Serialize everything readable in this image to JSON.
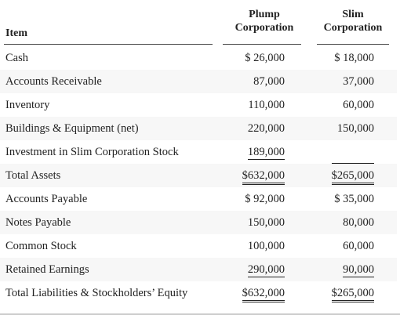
{
  "header": {
    "item": "Item",
    "plump": [
      "Plump",
      "Corporation"
    ],
    "slim": [
      "Slim",
      "Corporation"
    ]
  },
  "table": {
    "rows": [
      {
        "item": "Cash",
        "plump": "$ 26,000",
        "slim": "$ 18,000"
      },
      {
        "item": "Accounts Receivable",
        "plump": "87,000",
        "slim": "37,000"
      },
      {
        "item": "Inventory",
        "plump": "110,000",
        "slim": "60,000"
      },
      {
        "item": "Buildings & Equipment (net)",
        "plump": "220,000",
        "slim": "150,000"
      },
      {
        "item": "Investment in Slim Corporation Stock",
        "plump": "189,000",
        "rule": "single"
      },
      {
        "item": "Total Assets",
        "plump": "$632,000",
        "slim": "$265,000",
        "rule": "double"
      },
      {
        "item": "Accounts Payable",
        "plump": "$ 92,000",
        "slim": "$ 35,000"
      },
      {
        "item": "Notes Payable",
        "plump": "150,000",
        "slim": "80,000"
      },
      {
        "item": "Common Stock",
        "plump": "100,000",
        "slim": "60,000"
      },
      {
        "item": "Retained Earnings",
        "plump": "290,000",
        "slim": "90,000",
        "rule": "single"
      },
      {
        "item": "Total Liabilities & Stockholders’ Equity",
        "plump": "$632,000",
        "slim": "$265,000",
        "rule": "double"
      }
    ]
  }
}
